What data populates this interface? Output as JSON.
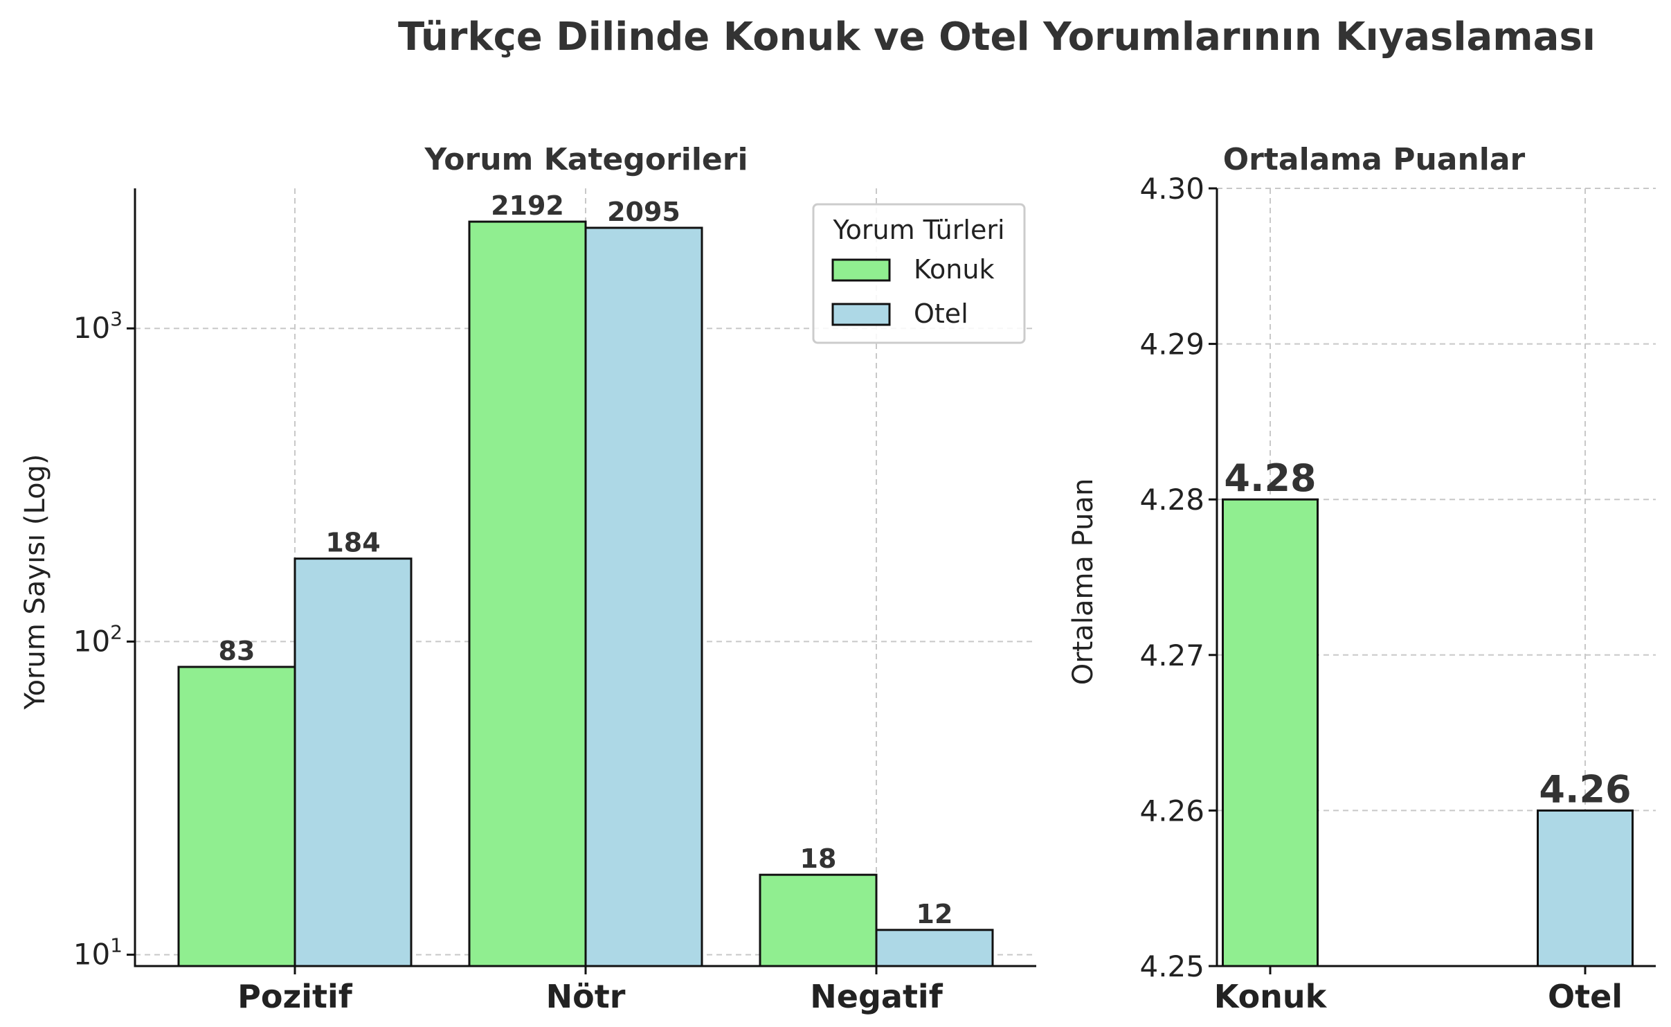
{
  "figure_title": "Türkçe Dilinde Konuk ve Otel Yorumlarının Kıyaslaması",
  "colors": {
    "konuk": "#90EE90",
    "otel": "#ADD8E6",
    "text": "#333333"
  },
  "chart_data": [
    {
      "type": "bar",
      "title": "Yorum Kategorileri",
      "xlabel": "",
      "ylabel": "Yorum Sayısı (Log)",
      "yscale": "log",
      "ylim": [
        9.2,
        2800
      ],
      "ytick_labels": [
        {
          "base": "10",
          "exp": "1",
          "value": 10
        },
        {
          "base": "10",
          "exp": "2",
          "value": 100
        },
        {
          "base": "10",
          "exp": "3",
          "value": 1000
        }
      ],
      "categories": [
        "Pozitif",
        "Nötr",
        "Negatif"
      ],
      "series": [
        {
          "name": "Konuk",
          "color": "#90EE90",
          "values": [
            83,
            2192,
            18
          ]
        },
        {
          "name": "Otel",
          "color": "#ADD8E6",
          "values": [
            184,
            2095,
            12
          ]
        }
      ],
      "legend": {
        "title": "Yorum Türleri",
        "position": "top-right"
      },
      "grid": true
    },
    {
      "type": "bar",
      "title": "Ortalama Puanlar",
      "xlabel": "",
      "ylabel": "Ortalama Puan",
      "ylim": [
        4.25,
        4.3
      ],
      "yticks": [
        "4.25",
        "4.26",
        "4.27",
        "4.28",
        "4.29",
        "4.30"
      ],
      "categories": [
        "Konuk",
        "Otel"
      ],
      "values": [
        4.28,
        4.26
      ],
      "value_labels": [
        "4.28",
        "4.26"
      ],
      "colors": [
        "#90EE90",
        "#ADD8E6"
      ],
      "grid": true
    }
  ]
}
